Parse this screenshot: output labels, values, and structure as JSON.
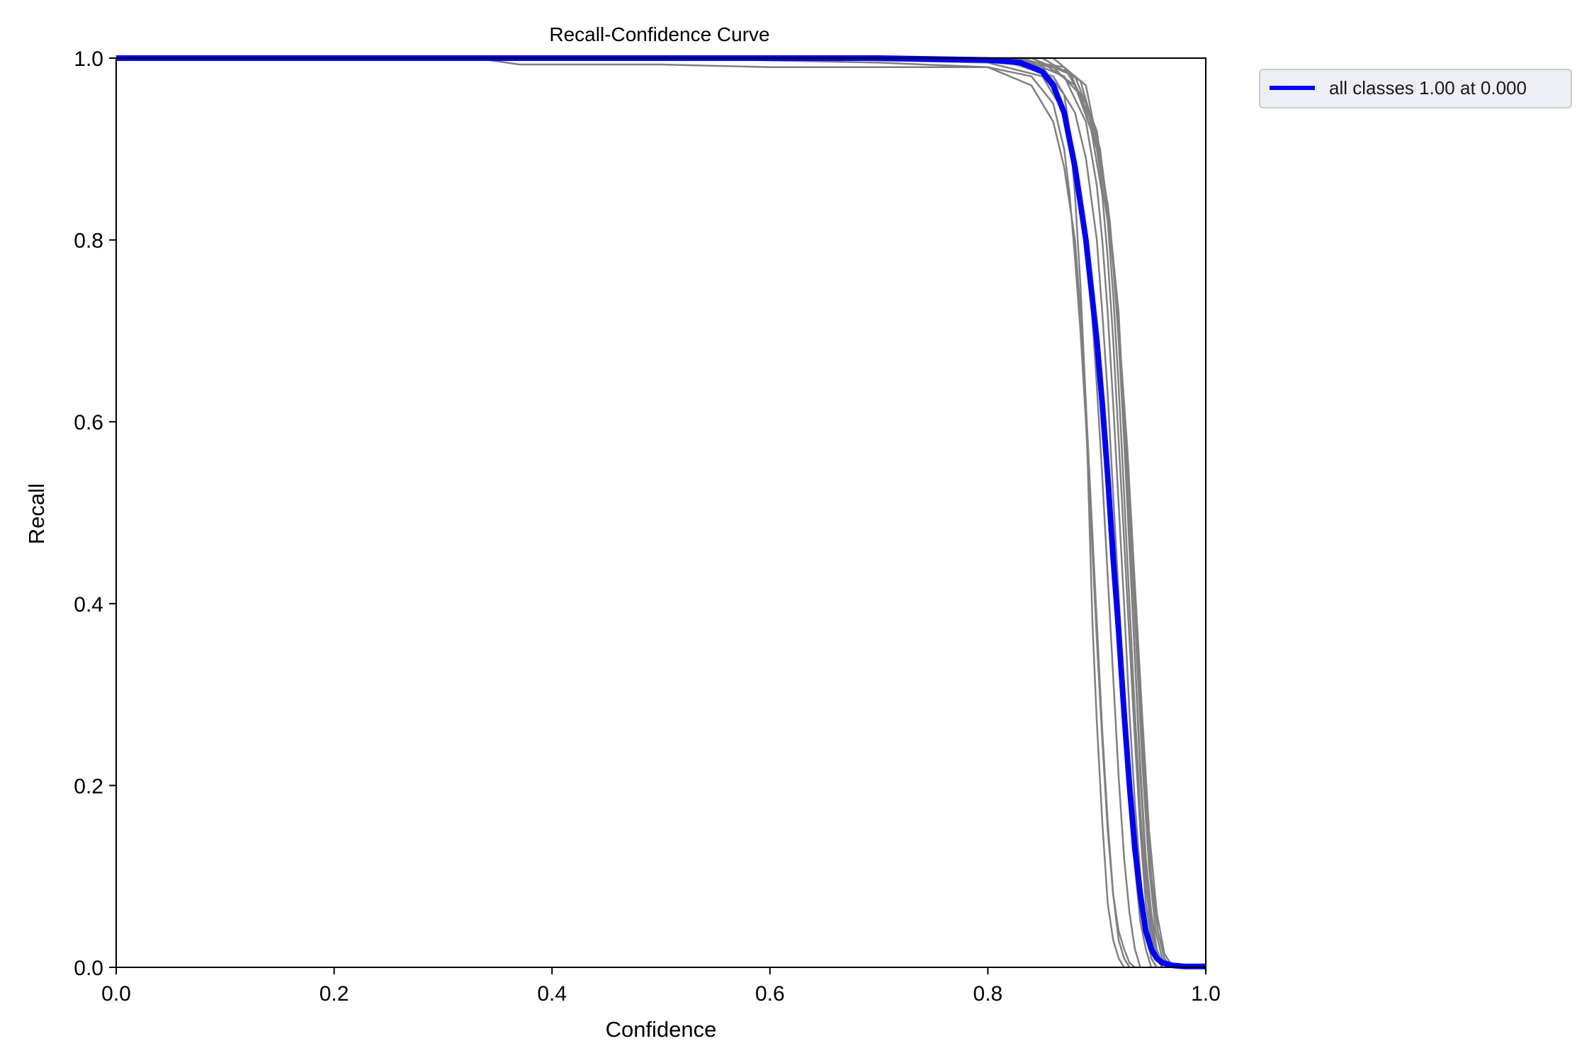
{
  "chart_data": {
    "type": "line",
    "title": "Recall-Confidence Curve",
    "xlabel": "Confidence",
    "ylabel": "Recall",
    "xlim": [
      0.0,
      1.0
    ],
    "ylim": [
      0.0,
      1.0
    ],
    "x_ticks": [
      "0.0",
      "0.2",
      "0.4",
      "0.6",
      "0.8",
      "1.0"
    ],
    "y_ticks": [
      "0.0",
      "0.2",
      "0.4",
      "0.6",
      "0.8",
      "1.0"
    ],
    "grid": false,
    "legend": {
      "placement": "outside-top-right",
      "entries": [
        {
          "label": "all classes 1.00 at 0.000",
          "color": "#0000ff"
        }
      ]
    },
    "series": [
      {
        "name": "all classes 1.00 at 0.000",
        "color": "#0000ff",
        "x": [
          0.0,
          0.3,
          0.5,
          0.7,
          0.8,
          0.83,
          0.85,
          0.86,
          0.87,
          0.88,
          0.89,
          0.9,
          0.905,
          0.91,
          0.915,
          0.92,
          0.925,
          0.93,
          0.935,
          0.94,
          0.945,
          0.95,
          0.955,
          0.96,
          0.97,
          0.98,
          1.0
        ],
        "y": [
          1.0,
          1.0,
          1.0,
          1.0,
          0.998,
          0.995,
          0.985,
          0.97,
          0.94,
          0.88,
          0.8,
          0.69,
          0.62,
          0.54,
          0.45,
          0.37,
          0.28,
          0.2,
          0.13,
          0.08,
          0.04,
          0.02,
          0.01,
          0.005,
          0.002,
          0.001,
          0.001
        ]
      },
      {
        "name": "",
        "color": "#808080",
        "x": [
          0.0,
          0.33,
          0.37,
          0.5,
          0.6,
          0.7,
          0.8,
          0.84,
          0.86,
          0.87,
          0.875,
          0.88,
          0.885,
          0.89,
          0.895,
          0.9,
          0.905,
          0.91,
          0.915,
          0.92,
          0.925,
          0.93,
          0.935
        ],
        "y": [
          1.0,
          1.0,
          0.993,
          0.993,
          0.99,
          0.99,
          0.99,
          0.98,
          0.95,
          0.9,
          0.85,
          0.78,
          0.7,
          0.6,
          0.48,
          0.36,
          0.25,
          0.15,
          0.08,
          0.04,
          0.02,
          0.005,
          0.0
        ]
      },
      {
        "name": "",
        "color": "#808080",
        "x": [
          0.0,
          0.5,
          0.7,
          0.8,
          0.84,
          0.86,
          0.87,
          0.88,
          0.885,
          0.89,
          0.895,
          0.9,
          0.905,
          0.91,
          0.915,
          0.92,
          0.925,
          0.93
        ],
        "y": [
          1.0,
          1.0,
          0.995,
          0.99,
          0.97,
          0.93,
          0.88,
          0.8,
          0.72,
          0.62,
          0.5,
          0.38,
          0.26,
          0.16,
          0.08,
          0.03,
          0.01,
          0.0
        ]
      },
      {
        "name": "",
        "color": "#808080",
        "x": [
          0.0,
          0.6,
          0.8,
          0.85,
          0.87,
          0.88,
          0.89,
          0.895,
          0.9,
          0.905,
          0.91,
          0.915,
          0.92,
          0.925,
          0.93,
          0.935,
          0.94
        ],
        "y": [
          1.0,
          1.0,
          0.995,
          0.98,
          0.94,
          0.89,
          0.8,
          0.73,
          0.64,
          0.54,
          0.43,
          0.32,
          0.21,
          0.12,
          0.06,
          0.02,
          0.0
        ]
      },
      {
        "name": "",
        "color": "#808080",
        "x": [
          0.0,
          0.7,
          0.82,
          0.86,
          0.88,
          0.89,
          0.9,
          0.905,
          0.91,
          0.915,
          0.92,
          0.925,
          0.93,
          0.935,
          0.94,
          0.945,
          0.95
        ],
        "y": [
          1.0,
          1.0,
          0.995,
          0.98,
          0.94,
          0.89,
          0.8,
          0.72,
          0.63,
          0.52,
          0.41,
          0.3,
          0.2,
          0.11,
          0.05,
          0.02,
          0.0
        ]
      },
      {
        "name": "",
        "color": "#808080",
        "x": [
          0.0,
          0.75,
          0.84,
          0.87,
          0.89,
          0.9,
          0.905,
          0.91,
          0.915,
          0.92,
          0.925,
          0.93,
          0.935,
          0.94,
          0.945,
          0.95,
          0.955
        ],
        "y": [
          1.0,
          1.0,
          0.995,
          0.98,
          0.93,
          0.86,
          0.8,
          0.72,
          0.62,
          0.51,
          0.4,
          0.28,
          0.18,
          0.1,
          0.04,
          0.01,
          0.0
        ]
      },
      {
        "name": "",
        "color": "#808080",
        "x": [
          0.0,
          0.78,
          0.85,
          0.88,
          0.895,
          0.905,
          0.91,
          0.915,
          0.92,
          0.925,
          0.93,
          0.935,
          0.94,
          0.945,
          0.95,
          0.955,
          0.96
        ],
        "y": [
          1.0,
          1.0,
          0.995,
          0.97,
          0.92,
          0.85,
          0.78,
          0.69,
          0.58,
          0.47,
          0.36,
          0.25,
          0.15,
          0.07,
          0.03,
          0.01,
          0.0
        ]
      },
      {
        "name": "",
        "color": "#808080",
        "x": [
          0.0,
          0.8,
          0.86,
          0.885,
          0.9,
          0.91,
          0.915,
          0.92,
          0.925,
          0.93,
          0.935,
          0.94,
          0.945,
          0.95,
          0.955,
          0.96
        ],
        "y": [
          1.0,
          1.0,
          0.99,
          0.96,
          0.9,
          0.82,
          0.74,
          0.64,
          0.52,
          0.4,
          0.28,
          0.17,
          0.09,
          0.04,
          0.01,
          0.0
        ]
      },
      {
        "name": "",
        "color": "#808080",
        "x": [
          0.0,
          0.82,
          0.87,
          0.89,
          0.905,
          0.915,
          0.92,
          0.925,
          0.93,
          0.935,
          0.94,
          0.945,
          0.95,
          0.955,
          0.96,
          0.965
        ],
        "y": [
          1.0,
          1.0,
          0.99,
          0.95,
          0.88,
          0.78,
          0.69,
          0.58,
          0.46,
          0.34,
          0.22,
          0.12,
          0.06,
          0.02,
          0.005,
          0.0
        ]
      },
      {
        "name": "",
        "color": "#808080",
        "x": [
          0.0,
          0.83,
          0.875,
          0.895,
          0.91,
          0.92,
          0.925,
          0.93,
          0.935,
          0.94,
          0.945,
          0.95,
          0.955,
          0.96
        ],
        "y": [
          1.0,
          1.0,
          0.985,
          0.93,
          0.84,
          0.72,
          0.6,
          0.47,
          0.34,
          0.21,
          0.11,
          0.05,
          0.015,
          0.0
        ]
      },
      {
        "name": "",
        "color": "#808080",
        "x": [
          0.0,
          0.84,
          0.88,
          0.9,
          0.912,
          0.922,
          0.93,
          0.936,
          0.942,
          0.948,
          0.954,
          0.96,
          0.966
        ],
        "y": [
          1.0,
          1.0,
          0.98,
          0.92,
          0.82,
          0.66,
          0.5,
          0.36,
          0.22,
          0.11,
          0.04,
          0.01,
          0.0
        ]
      },
      {
        "name": "",
        "color": "#808080",
        "x": [
          0.0,
          0.85,
          0.885,
          0.903,
          0.915,
          0.925,
          0.932,
          0.938,
          0.944,
          0.95,
          0.956,
          0.962,
          0.968
        ],
        "y": [
          1.0,
          1.0,
          0.975,
          0.9,
          0.78,
          0.62,
          0.47,
          0.33,
          0.2,
          0.1,
          0.04,
          0.01,
          0.0
        ]
      },
      {
        "name": "",
        "color": "#808080",
        "x": [
          0.0,
          0.8,
          0.85,
          0.87,
          0.875,
          0.88,
          0.885,
          0.89,
          0.893,
          0.896,
          0.9,
          0.905,
          0.91,
          0.915,
          0.92,
          0.925
        ],
        "y": [
          1.0,
          1.0,
          0.99,
          0.96,
          0.92,
          0.85,
          0.75,
          0.62,
          0.5,
          0.38,
          0.27,
          0.16,
          0.07,
          0.03,
          0.01,
          0.0
        ]
      },
      {
        "name": "",
        "color": "#808080",
        "x": [
          0.0,
          0.86,
          0.89,
          0.905,
          0.918,
          0.928,
          0.935,
          0.942,
          0.948,
          0.955,
          0.962,
          0.97
        ],
        "y": [
          1.0,
          1.0,
          0.97,
          0.88,
          0.74,
          0.57,
          0.42,
          0.27,
          0.15,
          0.06,
          0.015,
          0.0
        ]
      }
    ]
  }
}
